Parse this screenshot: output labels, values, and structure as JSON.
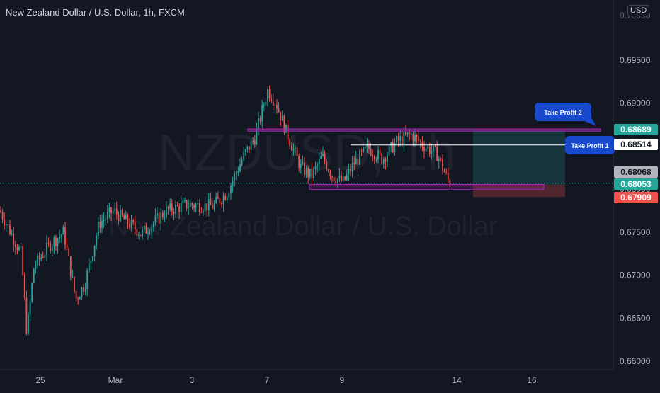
{
  "header": {
    "title": "New Zealand Dollar / U.S. Dollar, 1h, FXCM",
    "currency_button": "USD"
  },
  "watermark": {
    "symbol": "NZDUSD, 1h",
    "name": "New Zealand Dollar / U.S. Dollar"
  },
  "colors": {
    "background": "#131722",
    "up_candle": "#26a69a",
    "down_candle": "#ef5350",
    "grid": "#1e222d",
    "axis_text": "#b2b5be",
    "rectangle": "#9c27b0",
    "take_profit_zone": "#26a69a",
    "stop_loss_zone": "#ef5350",
    "label_blue": "#1848cc"
  },
  "chart_data": {
    "type": "candlestick",
    "title": "New Zealand Dollar / U.S. Dollar, 1h, FXCM",
    "y_ticks": [
      "0.69500",
      "0.69000",
      "0.68500",
      "0.68000",
      "0.67500",
      "0.67000",
      "0.66500",
      "0.66000"
    ],
    "x_ticks": [
      "25",
      "Mar",
      "3",
      "7",
      "9",
      "14",
      "16"
    ],
    "ylim": [
      0.66,
      0.6985
    ],
    "grid": false,
    "candles_summary": "hourly candles, start ~0.6775 on Feb 24, dip to ~0.6630 near Feb 25, rally to ~0.6925 on Mar 7, range 0.6800-0.6870, last ~0.6805",
    "price_path": [
      {
        "t": 0,
        "p": 0.6775
      },
      {
        "t": 30,
        "p": 0.6725
      },
      {
        "t": 38,
        "p": 0.6632
      },
      {
        "t": 48,
        "p": 0.671
      },
      {
        "t": 70,
        "p": 0.6735
      },
      {
        "t": 90,
        "p": 0.675
      },
      {
        "t": 107,
        "p": 0.6672
      },
      {
        "t": 120,
        "p": 0.669
      },
      {
        "t": 140,
        "p": 0.676
      },
      {
        "t": 160,
        "p": 0.6775
      },
      {
        "t": 200,
        "p": 0.6748
      },
      {
        "t": 235,
        "p": 0.6775
      },
      {
        "t": 265,
        "p": 0.6782
      },
      {
        "t": 300,
        "p": 0.678
      },
      {
        "t": 320,
        "p": 0.6795
      },
      {
        "t": 345,
        "p": 0.684
      },
      {
        "t": 360,
        "p": 0.686
      },
      {
        "t": 378,
        "p": 0.6915
      },
      {
        "t": 390,
        "p": 0.69
      },
      {
        "t": 405,
        "p": 0.6865
      },
      {
        "t": 425,
        "p": 0.6825
      },
      {
        "t": 440,
        "p": 0.6815
      },
      {
        "t": 455,
        "p": 0.6838
      },
      {
        "t": 470,
        "p": 0.6815
      },
      {
        "t": 485,
        "p": 0.6808
      },
      {
        "t": 500,
        "p": 0.683
      },
      {
        "t": 520,
        "p": 0.6848
      },
      {
        "t": 540,
        "p": 0.6835
      },
      {
        "t": 560,
        "p": 0.6855
      },
      {
        "t": 580,
        "p": 0.6864
      },
      {
        "t": 600,
        "p": 0.685
      },
      {
        "t": 618,
        "p": 0.684
      },
      {
        "t": 630,
        "p": 0.6815
      },
      {
        "t": 637,
        "p": 0.6805
      }
    ],
    "horizontal_lines": [
      {
        "price": 0.68514,
        "label": "0.68514"
      }
    ],
    "rectangles": [
      {
        "name": "resistance-zone",
        "from_t": 350,
        "to_t": 848,
        "top": 0.687,
        "bottom": 0.68675
      },
      {
        "name": "support-zone",
        "from_t": 437,
        "to_t": 768,
        "top": 0.68055,
        "bottom": 0.67995
      }
    ],
    "position_zone": {
      "from_t": 668,
      "to_t": 798,
      "target_top": 0.68689,
      "entry": 0.68053,
      "stop": 0.67909
    },
    "price_labels": [
      {
        "value": "0.68689",
        "kind": "take-profit-2",
        "bg": "#26a69a"
      },
      {
        "value": "0.68514",
        "kind": "take-profit-1",
        "bg": "#ffffff"
      },
      {
        "value": "0.68068",
        "kind": "current-price",
        "bg": "#b2b5be"
      },
      {
        "value": "0.68053",
        "kind": "entry",
        "bg": "#26a69a"
      },
      {
        "value": "0.67909",
        "kind": "stop-loss",
        "bg": "#ef5350"
      }
    ],
    "callouts": [
      {
        "text": "Take Profit 2"
      },
      {
        "text": "Take Profit 1"
      }
    ],
    "current_price": 0.68068
  }
}
